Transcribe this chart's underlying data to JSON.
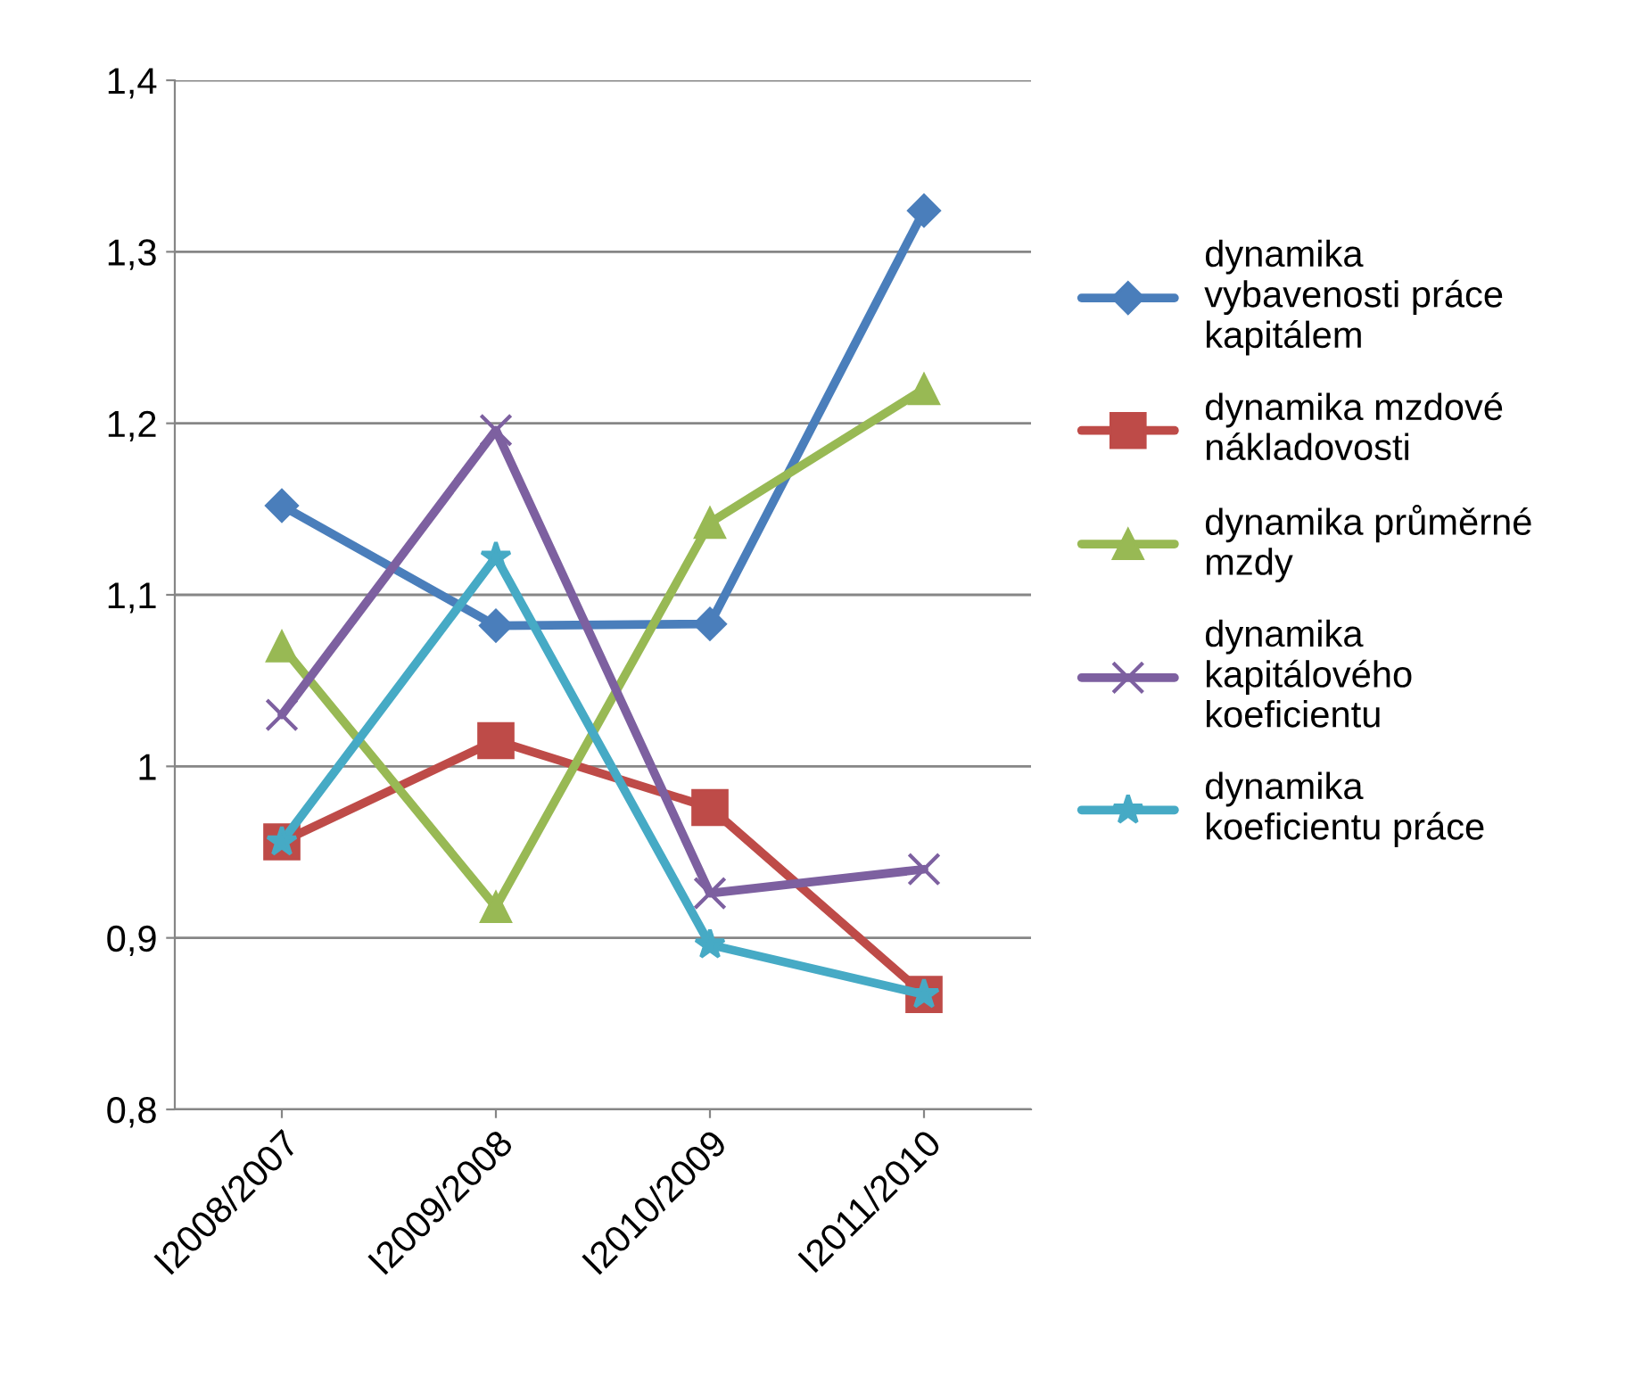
{
  "chart_data": {
    "type": "line",
    "categories": [
      "I2008/2007",
      "I2009/2008",
      "I2010/2009",
      "I2011/2010"
    ],
    "series": [
      {
        "name": "dynamika vybavenosti práce kapitálem",
        "color": "#4a7ebb",
        "marker": "diamond",
        "values": [
          1.152,
          1.082,
          1.083,
          1.324
        ]
      },
      {
        "name": "dynamika mzdové nákladovosti",
        "color": "#be4b48",
        "marker": "square",
        "values": [
          0.956,
          1.015,
          0.976,
          0.867
        ]
      },
      {
        "name": "dynamika průměrné mzdy",
        "color": "#98b954",
        "marker": "triangle",
        "values": [
          1.07,
          0.918,
          1.142,
          1.22
        ]
      },
      {
        "name": "dynamika kapitálového koeficientu",
        "color": "#7d60a0",
        "marker": "cross",
        "values": [
          1.03,
          1.196,
          0.926,
          0.94
        ]
      },
      {
        "name": "dynamika koeficientu práce",
        "color": "#46aac5",
        "marker": "star",
        "values": [
          0.956,
          1.122,
          0.896,
          0.867
        ]
      }
    ],
    "ylim": [
      0.8,
      1.4
    ],
    "yticks": [
      {
        "value": 0.8,
        "label": "0,8"
      },
      {
        "value": 0.9,
        "label": "0,9"
      },
      {
        "value": 1,
        "label": "1"
      },
      {
        "value": 1.1,
        "label": "1,1"
      },
      {
        "value": 1.2,
        "label": "1,2"
      },
      {
        "value": 1.3,
        "label": "1,3"
      },
      {
        "value": 1.4,
        "label": "1,4"
      }
    ],
    "grid": "y",
    "legend": "right",
    "line_style": "solid"
  }
}
